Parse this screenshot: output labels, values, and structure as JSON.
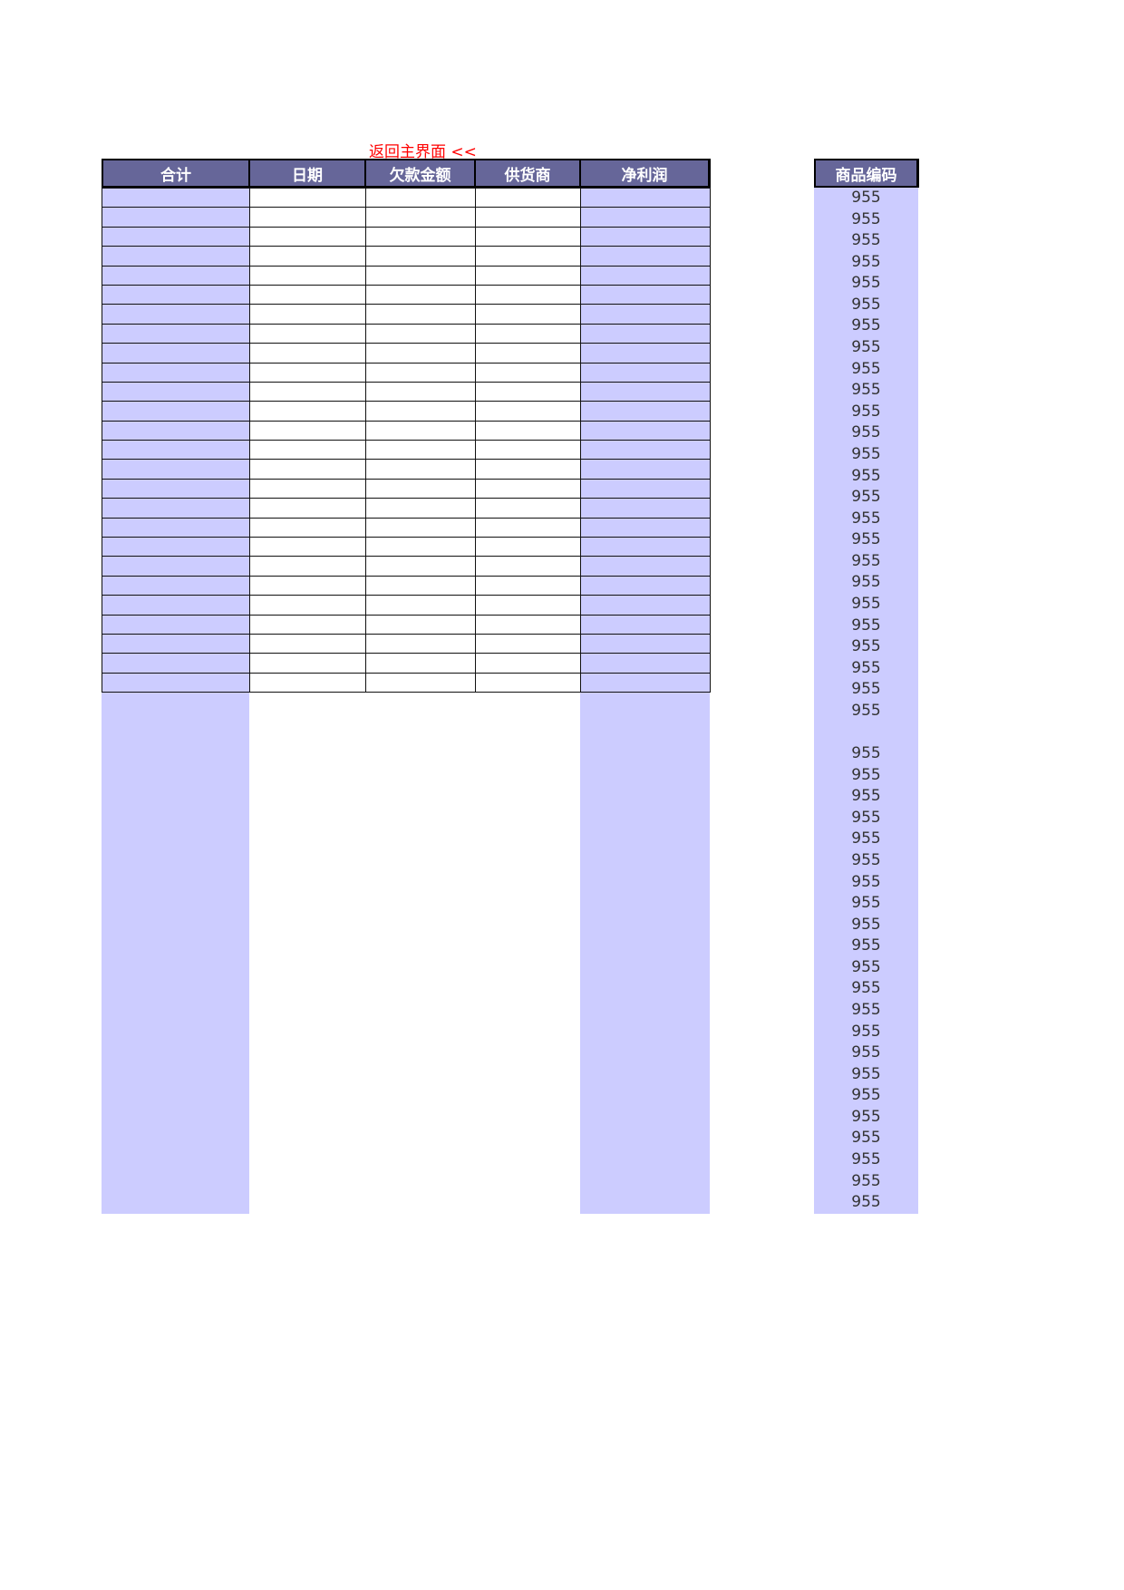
{
  "back_link": "返回主界面 <<",
  "columns": [
    "合计",
    "日期",
    "欠款金额",
    "供货商",
    "净利润"
  ],
  "code_header": "商品编码",
  "colors": {
    "header": "#666699",
    "fill": "#ccccff",
    "link": "#ff0000"
  },
  "row_count": 26,
  "codes": [
    "955",
    "955",
    "955",
    "955",
    "955",
    "955",
    "955",
    "955",
    "955",
    "955",
    "955",
    "955",
    "955",
    "955",
    "955",
    "955",
    "955",
    "955",
    "955",
    "955",
    "955",
    "955",
    "955",
    "955",
    "955",
    "",
    "955",
    "955",
    "955",
    "955",
    "955",
    "955",
    "955",
    "955",
    "955",
    "955",
    "955",
    "955",
    "955",
    "955",
    "955",
    "955",
    "955",
    "955",
    "955",
    "955",
    "955",
    "955"
  ]
}
